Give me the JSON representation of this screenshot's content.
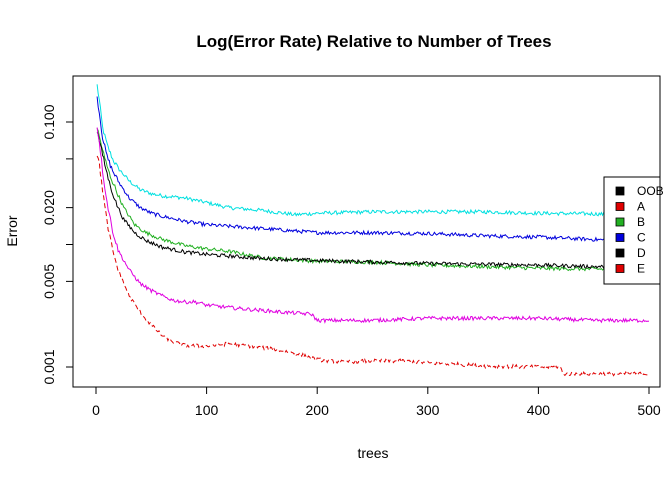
{
  "chart_data": {
    "type": "line",
    "title": "Log(Error Rate) Relative to Number of Trees",
    "xlabel": "trees",
    "ylabel": "Error",
    "log_y": true,
    "xlim": [
      0,
      500
    ],
    "ylim": [
      0.0008,
      0.18
    ],
    "x_ticks": [
      0,
      100,
      200,
      300,
      400,
      500
    ],
    "y_ticks": [
      0.001,
      0.005,
      0.02,
      0.1
    ],
    "y_tick_labels": [
      "0.001",
      "0.005",
      "0.020",
      "0.100"
    ],
    "legend": {
      "position": "right",
      "entries": [
        {
          "label": "OOB",
          "color": "#000000"
        },
        {
          "label": "A",
          "color": "#DF0000"
        },
        {
          "label": "B",
          "color": "#22B022"
        },
        {
          "label": "C",
          "color": "#0000DD"
        },
        {
          "label": "D",
          "color": "#000000"
        },
        {
          "label": "E",
          "color": "#DF0000"
        }
      ]
    },
    "series": [
      {
        "key": "cyan",
        "color": "#00E0E0",
        "dash": "",
        "points": [
          [
            1,
            0.2
          ],
          [
            3,
            0.15
          ],
          [
            6,
            0.09
          ],
          [
            10,
            0.065
          ],
          [
            15,
            0.05
          ],
          [
            20,
            0.042
          ],
          [
            30,
            0.033
          ],
          [
            40,
            0.028
          ],
          [
            50,
            0.026
          ],
          [
            60,
            0.025
          ],
          [
            80,
            0.024
          ],
          [
            100,
            0.022
          ],
          [
            120,
            0.02
          ],
          [
            150,
            0.019
          ],
          [
            180,
            0.0175
          ],
          [
            200,
            0.018
          ],
          [
            250,
            0.0185
          ],
          [
            300,
            0.0185
          ],
          [
            350,
            0.0185
          ],
          [
            400,
            0.018
          ],
          [
            450,
            0.0178
          ],
          [
            500,
            0.0172
          ]
        ]
      },
      {
        "key": "blue",
        "color": "#0000DD",
        "dash": "",
        "points": [
          [
            1,
            0.16
          ],
          [
            3,
            0.12
          ],
          [
            6,
            0.075
          ],
          [
            10,
            0.052
          ],
          [
            15,
            0.04
          ],
          [
            20,
            0.033
          ],
          [
            30,
            0.024
          ],
          [
            40,
            0.02
          ],
          [
            50,
            0.018
          ],
          [
            60,
            0.017
          ],
          [
            80,
            0.0155
          ],
          [
            100,
            0.0145
          ],
          [
            150,
            0.0135
          ],
          [
            200,
            0.0125
          ],
          [
            250,
            0.0125
          ],
          [
            300,
            0.0123
          ],
          [
            350,
            0.0118
          ],
          [
            400,
            0.0115
          ],
          [
            450,
            0.011
          ],
          [
            500,
            0.0105
          ]
        ]
      },
      {
        "key": "green",
        "color": "#22B022",
        "dash": "",
        "points": [
          [
            1,
            0.09
          ],
          [
            4,
            0.07
          ],
          [
            8,
            0.05
          ],
          [
            12,
            0.038
          ],
          [
            18,
            0.028
          ],
          [
            25,
            0.02
          ],
          [
            35,
            0.0145
          ],
          [
            45,
            0.0125
          ],
          [
            60,
            0.011
          ],
          [
            80,
            0.0098
          ],
          [
            100,
            0.0092
          ],
          [
            120,
            0.0088
          ],
          [
            150,
            0.0078
          ],
          [
            200,
            0.0073
          ],
          [
            250,
            0.0072
          ],
          [
            300,
            0.0068
          ],
          [
            350,
            0.0066
          ],
          [
            400,
            0.0064
          ],
          [
            450,
            0.0063
          ],
          [
            500,
            0.0063
          ]
        ]
      },
      {
        "key": "black",
        "color": "#000000",
        "dash": "",
        "points": [
          [
            1,
            0.085
          ],
          [
            4,
            0.065
          ],
          [
            8,
            0.045
          ],
          [
            12,
            0.032
          ],
          [
            18,
            0.022
          ],
          [
            25,
            0.016
          ],
          [
            35,
            0.0125
          ],
          [
            45,
            0.0108
          ],
          [
            60,
            0.0095
          ],
          [
            80,
            0.0087
          ],
          [
            100,
            0.0083
          ],
          [
            150,
            0.0077
          ],
          [
            200,
            0.0074
          ],
          [
            250,
            0.0072
          ],
          [
            300,
            0.007
          ],
          [
            350,
            0.0069
          ],
          [
            400,
            0.0068
          ],
          [
            450,
            0.0066
          ],
          [
            500,
            0.0065
          ]
        ]
      },
      {
        "key": "magenta",
        "color": "#E000E0",
        "dash": "",
        "points": [
          [
            1,
            0.09
          ],
          [
            3,
            0.07
          ],
          [
            6,
            0.04
          ],
          [
            10,
            0.022
          ],
          [
            15,
            0.013
          ],
          [
            20,
            0.009
          ],
          [
            30,
            0.0062
          ],
          [
            40,
            0.0048
          ],
          [
            50,
            0.0042
          ],
          [
            60,
            0.0038
          ],
          [
            70,
            0.0035
          ],
          [
            80,
            0.0034
          ],
          [
            90,
            0.0034
          ],
          [
            100,
            0.0032
          ],
          [
            130,
            0.003
          ],
          [
            150,
            0.0029
          ],
          [
            170,
            0.0028
          ],
          [
            195,
            0.0027
          ],
          [
            200,
            0.0024
          ],
          [
            250,
            0.0024
          ],
          [
            300,
            0.0025
          ],
          [
            400,
            0.0025
          ],
          [
            450,
            0.0024
          ],
          [
            500,
            0.0024
          ]
        ]
      },
      {
        "key": "red",
        "color": "#DF0000",
        "dash": "5,3",
        "points": [
          [
            1,
            0.055
          ],
          [
            3,
            0.045
          ],
          [
            6,
            0.028
          ],
          [
            10,
            0.015
          ],
          [
            15,
            0.009
          ],
          [
            20,
            0.0062
          ],
          [
            30,
            0.0038
          ],
          [
            40,
            0.0028
          ],
          [
            50,
            0.0022
          ],
          [
            60,
            0.0018
          ],
          [
            70,
            0.0016
          ],
          [
            80,
            0.0015
          ],
          [
            100,
            0.00148
          ],
          [
            120,
            0.00155
          ],
          [
            140,
            0.00148
          ],
          [
            160,
            0.0014
          ],
          [
            180,
            0.0013
          ],
          [
            200,
            0.00115
          ],
          [
            220,
            0.0011
          ],
          [
            250,
            0.00112
          ],
          [
            280,
            0.00112
          ],
          [
            300,
            0.00108
          ],
          [
            330,
            0.00105
          ],
          [
            350,
            0.00102
          ],
          [
            400,
            0.001
          ],
          [
            420,
            0.001
          ],
          [
            422,
            0.00088
          ],
          [
            450,
            0.00088
          ],
          [
            500,
            0.00088
          ]
        ]
      }
    ]
  }
}
